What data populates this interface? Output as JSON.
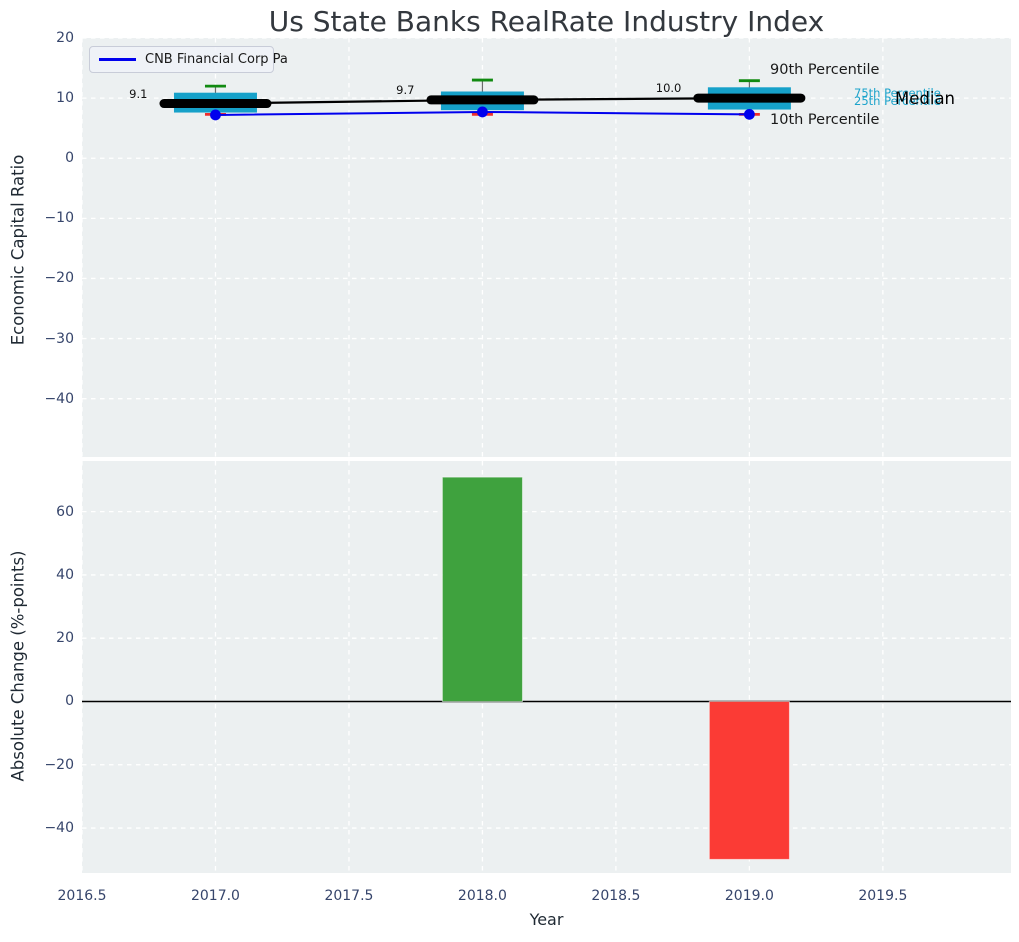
{
  "figure": {
    "title": "Us State Banks RealRate Industry Index"
  },
  "legend": {
    "label": "CNB Financial Corp Pa"
  },
  "colors": {
    "plot_bg": "#ecf0f1",
    "grid": "#ffffff",
    "box": "#16a1c9",
    "cyan_text": "#1ba3cb",
    "p90_cap": "#118a11",
    "p10_cap": "#ee2e2e",
    "median": "#000000",
    "company_line": "#0000ee",
    "bar_up": "#3fa23e",
    "bar_down": "#fb3b35",
    "tick": "#36456b",
    "label": "#1f2933",
    "whisker": "#6b6b6b"
  },
  "chart_data": [
    {
      "type": "line",
      "subtype": "percentile-band-boxes with company line",
      "ylabel": "Economic Capital Ratio",
      "x": [
        2017,
        2018,
        2019
      ],
      "series": [
        {
          "name": "Median",
          "values": [
            9.1,
            9.7,
            10.0
          ]
        },
        {
          "name": "90th Percentile",
          "values": [
            12.0,
            13.0,
            12.9
          ]
        },
        {
          "name": "75th Percentile",
          "values": [
            10.9,
            11.1,
            11.8
          ]
        },
        {
          "name": "25th Percentile",
          "values": [
            7.6,
            8.0,
            8.1
          ]
        },
        {
          "name": "10th Percentile",
          "values": [
            7.3,
            7.3,
            7.3
          ]
        },
        {
          "name": "CNB Financial Corp Pa",
          "values": [
            7.2,
            7.7,
            7.3
          ]
        }
      ],
      "point_labels": [
        "9.1",
        "9.7",
        "10.0"
      ],
      "annotations": [
        {
          "text": "90th Percentile",
          "color": "#1a1a1a",
          "size": 14.5
        },
        {
          "text": "75th Percentile",
          "color": "#1ba3cb",
          "size": 11.5
        },
        {
          "text": "25th Percentile",
          "color": "#1ba3cb",
          "size": 11.5
        },
        {
          "text": "Median",
          "color": "#000000",
          "size": 16.5
        },
        {
          "text": "10th Percentile",
          "color": "#1a1a1a",
          "size": 14.5
        }
      ],
      "legend": [
        "CNB Financial Corp Pa"
      ],
      "legend_position": "upper left",
      "yticks": [
        20,
        10,
        0,
        -10,
        -20,
        -30,
        -40
      ],
      "yticklabels": [
        "20",
        "10",
        "0",
        "−10",
        "−20",
        "−30",
        "−40"
      ],
      "xticks": [
        2016.5,
        2017,
        2017.5,
        2018,
        2018.5,
        2019,
        2019.5
      ],
      "ylim": [
        -49.7,
        20
      ],
      "xlim": [
        2016.5,
        2019.98
      ],
      "grid": true
    },
    {
      "type": "bar",
      "xlabel": "Year",
      "ylabel": "Absolute Change (%-points)",
      "x": [
        2018,
        2019
      ],
      "values": [
        70.9,
        -49.9
      ],
      "bar_colors": [
        "#3fa23e",
        "#fb3b35"
      ],
      "bar_width_years": 0.3,
      "zero_line": true,
      "yticks": [
        60,
        40,
        20,
        0,
        -20,
        -40
      ],
      "yticklabels": [
        "60",
        "40",
        "20",
        "0",
        "−20",
        "−40"
      ],
      "xticks": [
        2016.5,
        2017,
        2017.5,
        2018,
        2018.5,
        2019,
        2019.5
      ],
      "xticklabels": [
        "2016.5",
        "2017.0",
        "2017.5",
        "2018.0",
        "2018.5",
        "2019.0",
        "2019.5"
      ],
      "ylim": [
        -54.2,
        76
      ],
      "xlim": [
        2016.5,
        2019.98
      ],
      "grid": true
    }
  ]
}
